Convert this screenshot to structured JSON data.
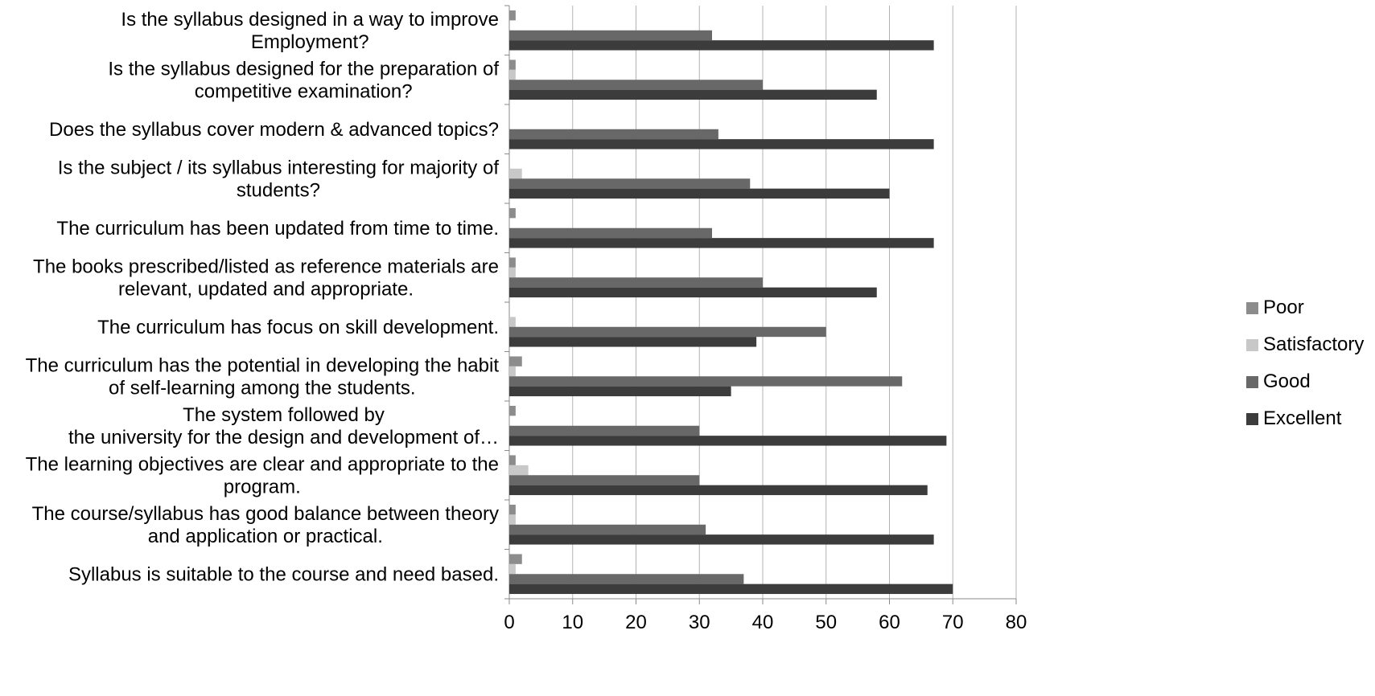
{
  "chart_data": {
    "type": "bar",
    "orientation": "horizontal",
    "categories": [
      [
        "Is the syllabus designed in a way to improve",
        "Employment?"
      ],
      [
        "Is the syllabus designed for the preparation of",
        "competitive examination?"
      ],
      [
        "Does the syllabus cover modern & advanced topics?"
      ],
      [
        "Is the subject / its syllabus interesting for majority of",
        "students?"
      ],
      [
        "The curriculum has been updated from time to time."
      ],
      [
        "The books prescribed/listed as reference materials are",
        "relevant, updated and appropriate."
      ],
      [
        "The curriculum has focus on skill development."
      ],
      [
        "The curriculum has the potential in developing the habit",
        "of self-learning among the students."
      ],
      [
        "The system followed by",
        "the university for the design and development of…"
      ],
      [
        "The learning objectives are clear and appropriate to the",
        "program."
      ],
      [
        "The course/syllabus has good balance between theory",
        "and application or practical."
      ],
      [
        "Syllabus is suitable to the course and need based."
      ]
    ],
    "series": [
      {
        "name": "Poor",
        "color": "#8c8c8c",
        "values": [
          1,
          1,
          0,
          0,
          1,
          1,
          0,
          2,
          1,
          1,
          1,
          2
        ]
      },
      {
        "name": "Satisfactory",
        "color": "#c8c8c8",
        "values": [
          0,
          1,
          0,
          2,
          0,
          1,
          1,
          1,
          0,
          3,
          1,
          1
        ]
      },
      {
        "name": "Good",
        "color": "#686868",
        "values": [
          32,
          40,
          33,
          38,
          32,
          40,
          50,
          62,
          30,
          30,
          31,
          37
        ]
      },
      {
        "name": "Excellent",
        "color": "#3c3c3c",
        "values": [
          67,
          58,
          67,
          60,
          67,
          58,
          39,
          35,
          69,
          66,
          67,
          70
        ]
      }
    ],
    "xlim": [
      0,
      80
    ],
    "xticks": [
      "0",
      "10",
      "20",
      "30",
      "40",
      "50",
      "60",
      "70",
      "80"
    ],
    "grid": true,
    "legend_position": "right"
  }
}
